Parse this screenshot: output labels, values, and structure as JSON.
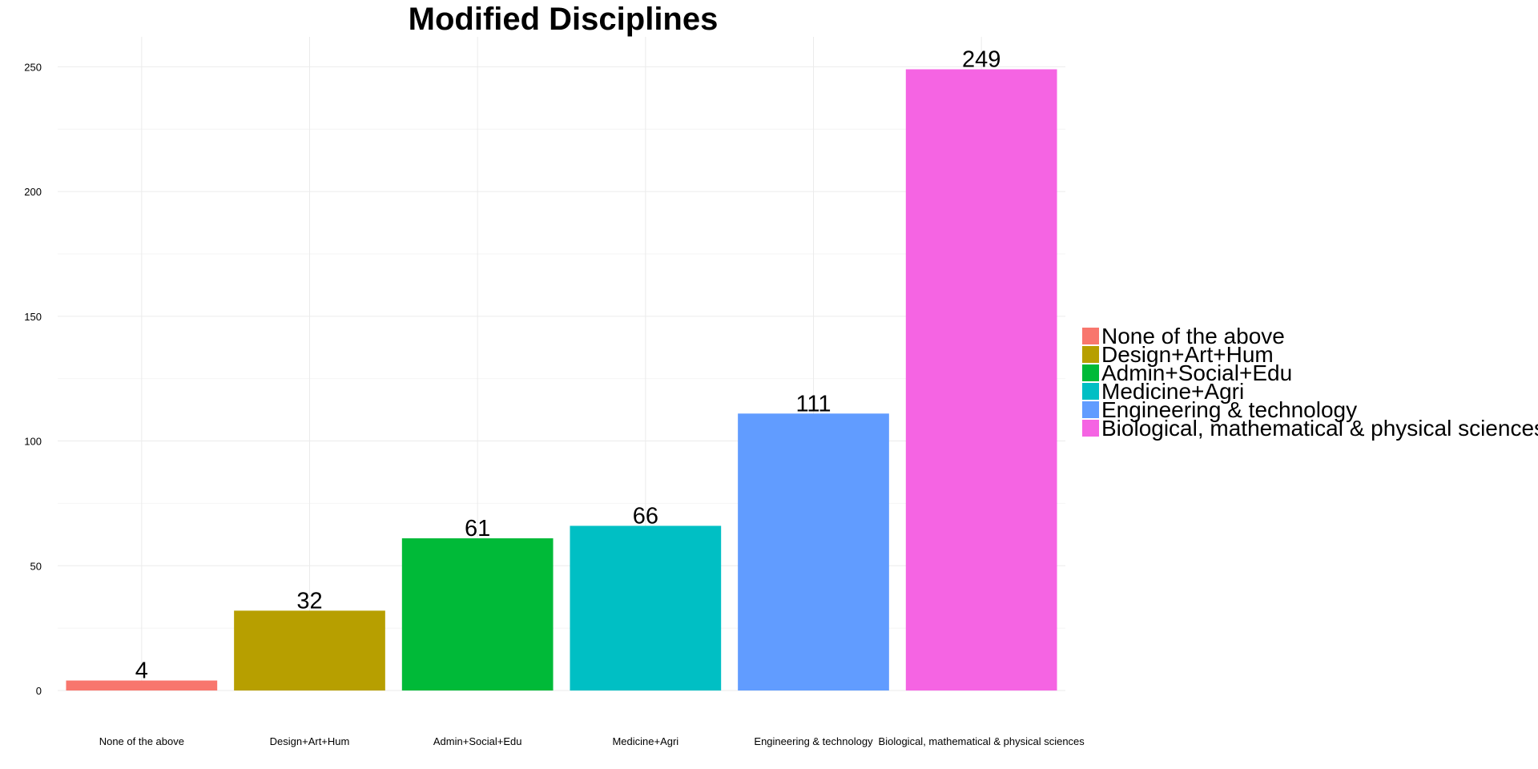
{
  "chart_data": {
    "type": "bar",
    "title": "Modified Disciplines",
    "xlabel": "",
    "ylabel": "",
    "categories": [
      "None of the above",
      "Design+Art+Hum",
      "Admin+Social+Edu",
      "Medicine+Agri",
      "Engineering & technology",
      "Biological, mathematical & physical sciences"
    ],
    "values": [
      4,
      32,
      61,
      66,
      111,
      249
    ],
    "data_labels": [
      "4",
      "32",
      "61",
      "66",
      "111",
      "249"
    ],
    "colors": [
      "#F8766D",
      "#B79F00",
      "#00BA38",
      "#00BFC4",
      "#619CFF",
      "#F564E3"
    ],
    "y_ticks": [
      0,
      50,
      100,
      150,
      200,
      250
    ],
    "ylim": [
      0,
      262
    ],
    "grid": true,
    "legend": {
      "position": "right",
      "entries": [
        "None of the above",
        "Design+Art+Hum",
        "Admin+Social+Edu",
        "Medicine+Agri",
        "Engineering & technology",
        "Biological, mathematical & physical sciences"
      ]
    }
  }
}
